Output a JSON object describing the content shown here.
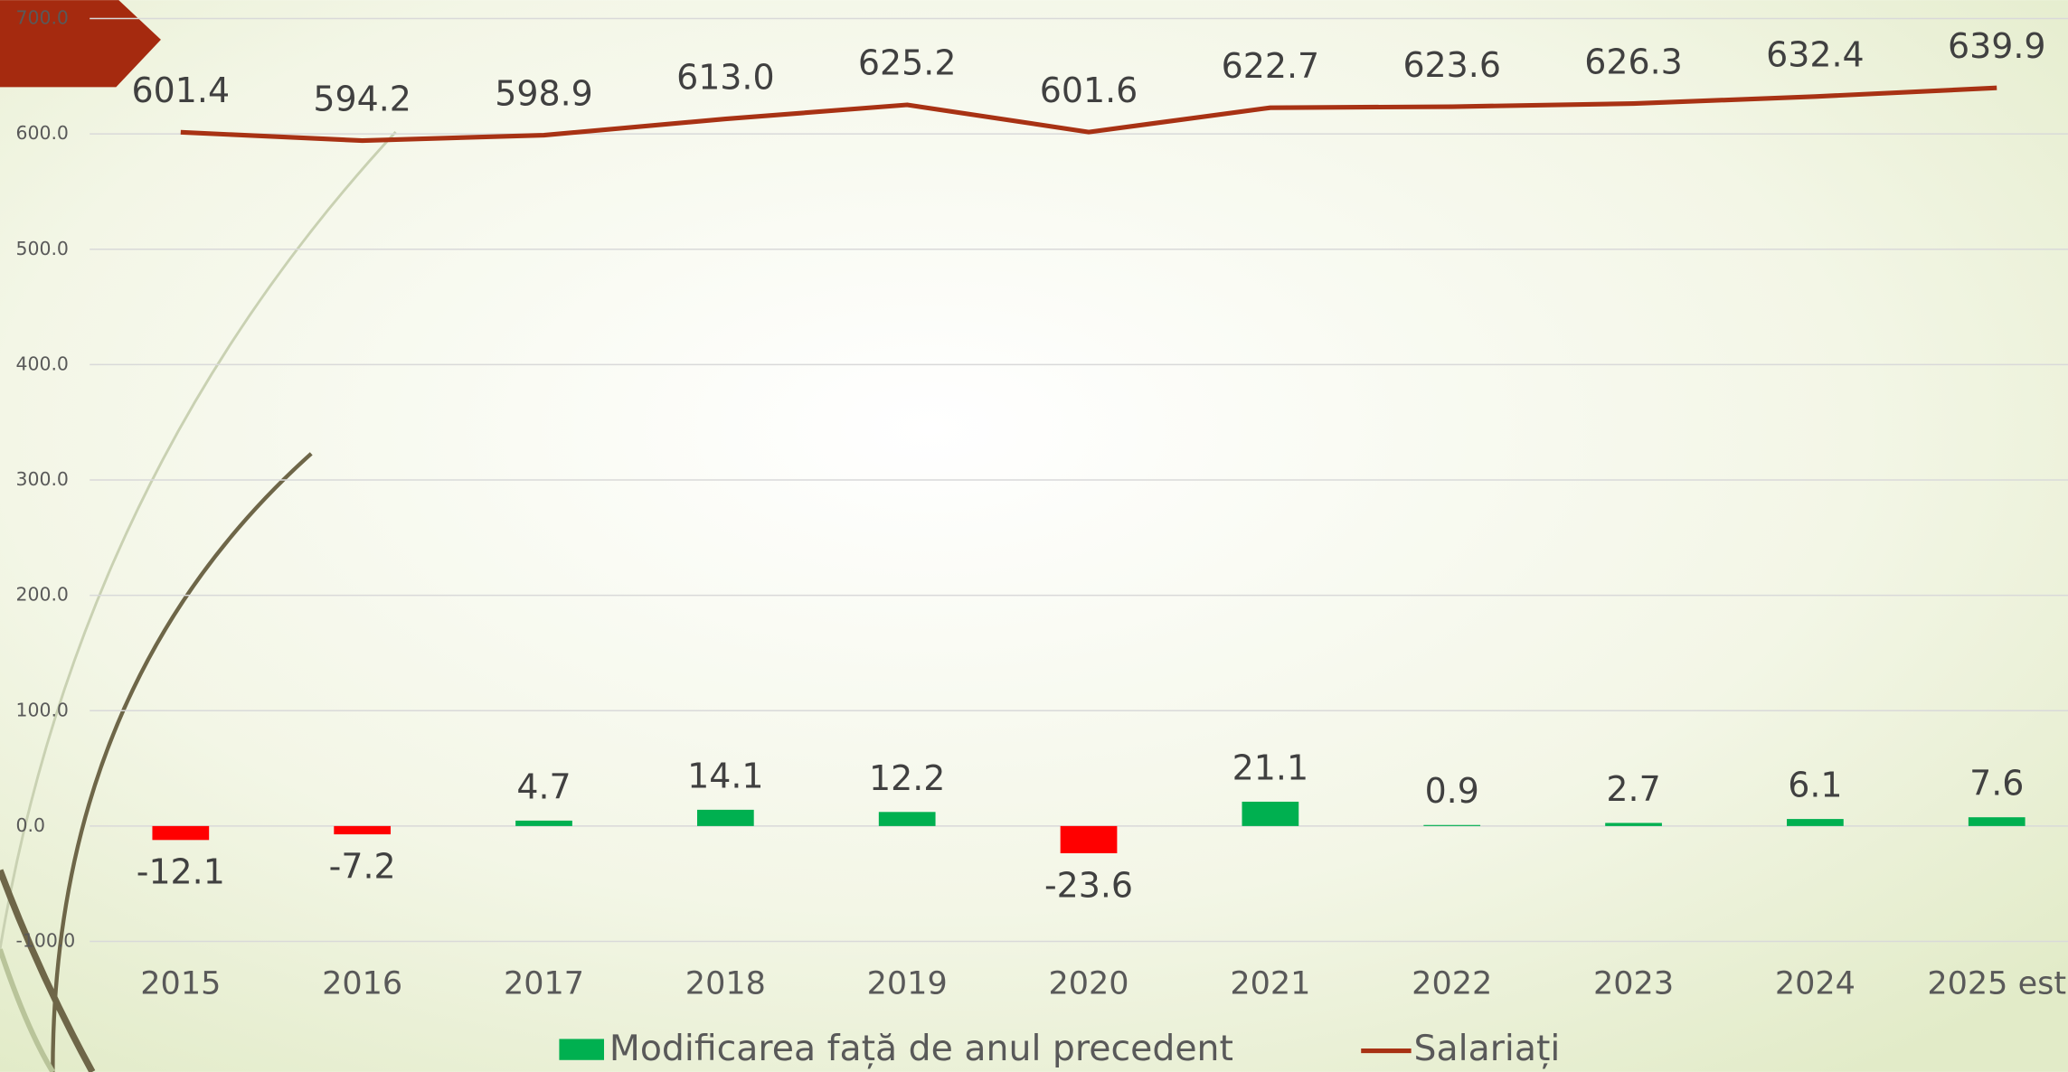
{
  "chart_data": {
    "type": "bar_line",
    "categories": [
      "2015",
      "2016",
      "2017",
      "2018",
      "2019",
      "2020",
      "2021",
      "2022",
      "2023",
      "2024",
      "2025 est"
    ],
    "series": [
      {
        "name": "Modificarea față de anul precedent",
        "type": "bar",
        "color": "#00b050",
        "negative_color": "#ff0000",
        "values": [
          -12.1,
          -7.2,
          4.7,
          14.1,
          12.2,
          -23.6,
          21.1,
          0.9,
          2.7,
          6.1,
          7.6
        ]
      },
      {
        "name": "Salariați",
        "type": "line",
        "color": "#a83214",
        "values": [
          601.4,
          594.2,
          598.9,
          613.0,
          625.2,
          601.6,
          622.7,
          623.6,
          626.3,
          632.4,
          639.9
        ],
        "value_labels": [
          "601.4",
          "594.2",
          "598.9",
          "613.0",
          "625.2",
          "601.6",
          "622.7",
          "623.6",
          "626.3",
          "632.4",
          "639.9"
        ]
      }
    ],
    "ylim": [
      -100,
      700
    ],
    "yticks": [
      {
        "value": -100,
        "label": "-100.0"
      },
      {
        "value": 0,
        "label": "0.0"
      },
      {
        "value": 100,
        "label": "100.0"
      },
      {
        "value": 200,
        "label": "200.0"
      },
      {
        "value": 300,
        "label": "300.0"
      },
      {
        "value": 400,
        "label": "400.0"
      },
      {
        "value": 500,
        "label": "500.0"
      },
      {
        "value": 600,
        "label": "600.0"
      },
      {
        "value": 700,
        "label": "700.0"
      }
    ],
    "grid": true,
    "legend": "bottom"
  }
}
